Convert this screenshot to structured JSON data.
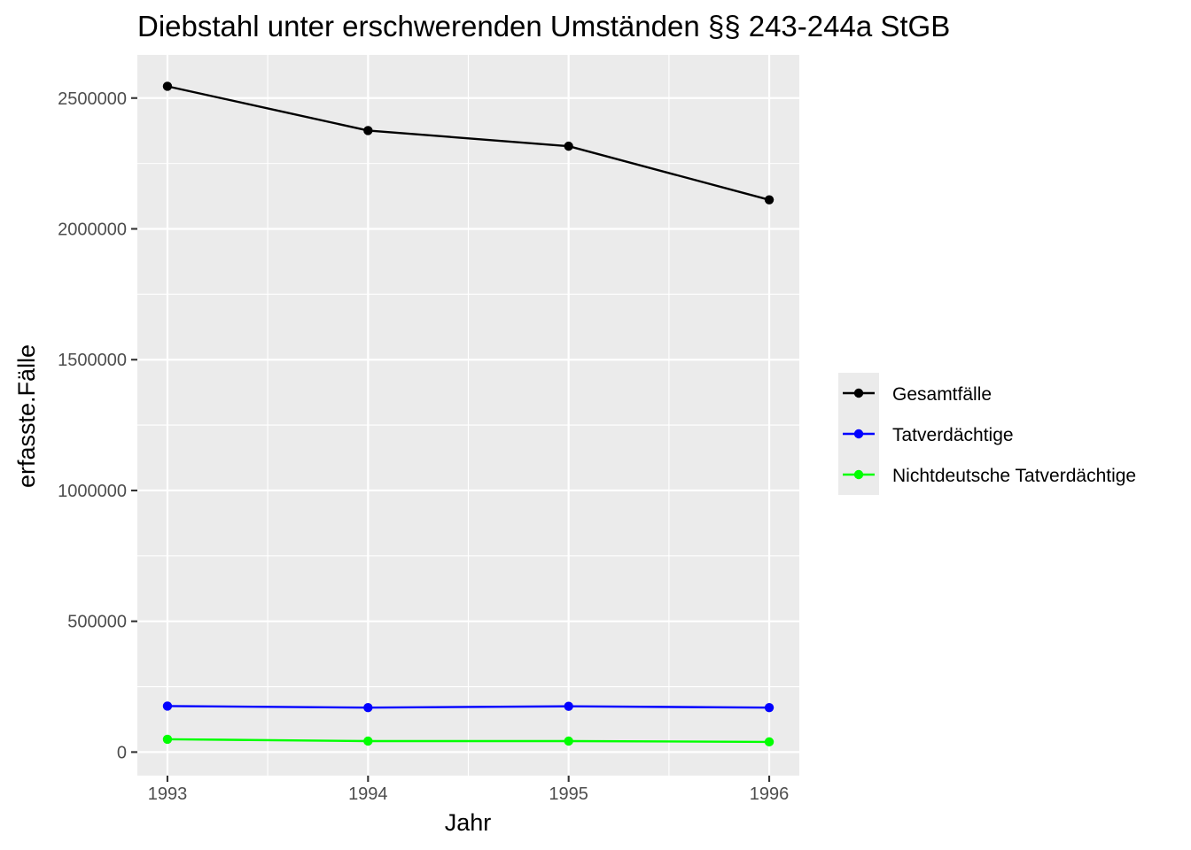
{
  "chart_data": {
    "type": "line",
    "title": "Diebstahl unter erschwerenden Umständen §§ 243-244a StGB",
    "xlabel": "Jahr",
    "ylabel": "erfasste.Fälle",
    "x": [
      1993,
      1994,
      1995,
      1996
    ],
    "x_tick_labels": [
      "1993",
      "1994",
      "1995",
      "1996"
    ],
    "xlim": [
      1992.85,
      1996.15
    ],
    "ylim": [
      -90000,
      2665000
    ],
    "y_ticks": [
      0,
      500000,
      1000000,
      1500000,
      2000000,
      2500000
    ],
    "y_tick_labels": [
      "0",
      "500000",
      "1000000",
      "1500000",
      "2000000",
      "2500000"
    ],
    "grid": true,
    "legend_position": "right",
    "series": [
      {
        "name": "Gesamtfälle",
        "color": "#000000",
        "values": [
          2545000,
          2376000,
          2316000,
          2111000
        ]
      },
      {
        "name": "Tatverdächtige",
        "color": "#0000ff",
        "values": [
          176000,
          170000,
          175000,
          170000
        ]
      },
      {
        "name": "Nichtdeutsche Tatverdächtige",
        "color": "#00ff00",
        "values": [
          49000,
          42000,
          42000,
          39000
        ]
      }
    ]
  }
}
